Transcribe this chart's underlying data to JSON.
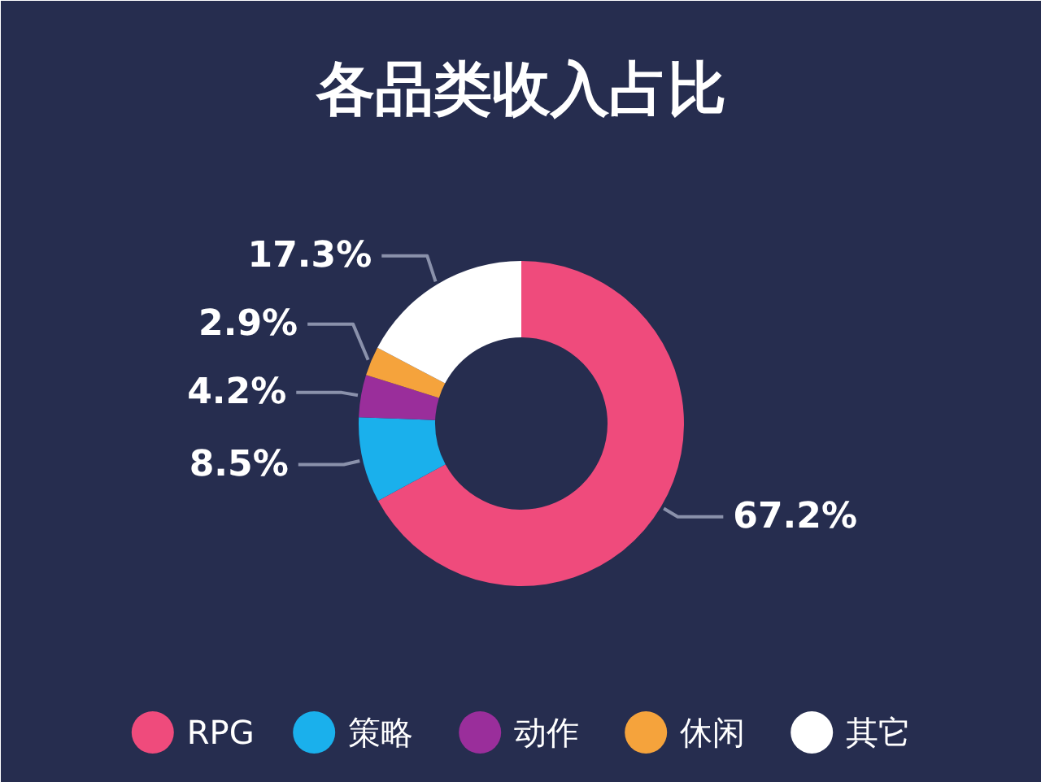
{
  "chart_data": {
    "type": "donut",
    "title": "各品类收入占比",
    "categories": [
      "RPG",
      "策略",
      "动作",
      "休闲",
      "其它"
    ],
    "values": [
      67.2,
      8.5,
      4.2,
      2.9,
      17.3
    ],
    "colors": [
      "#ef4b7c",
      "#1ab0ec",
      "#9a2e9b",
      "#f5a33c",
      "#ffffff"
    ],
    "value_labels": [
      "67.2%",
      "8.5%",
      "4.2%",
      "2.9%",
      "17.3%"
    ],
    "legend": "bottom"
  }
}
